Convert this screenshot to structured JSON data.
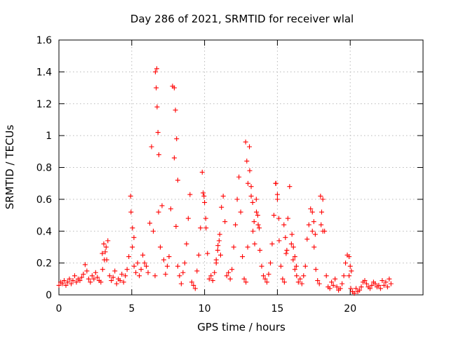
{
  "chart_data": {
    "type": "scatter",
    "title": "Day 286 of 2021, SRMTID for receiver wlal",
    "xlabel": "GPS time / hours",
    "ylabel": "SRMTID / TECUs",
    "xlim": [
      0,
      25
    ],
    "ylim": [
      0,
      1.6
    ],
    "grid": true,
    "x_ticks": [
      0,
      5,
      10,
      15,
      20
    ],
    "x_tick_labels": [
      "0",
      "5",
      "10",
      "15",
      "20"
    ],
    "y_ticks": [
      0,
      0.2,
      0.4,
      0.6,
      0.8,
      1,
      1.2,
      1.4,
      1.6
    ],
    "y_tick_labels": [
      "0",
      "0.2",
      "0.4",
      "0.6",
      "0.8",
      "1",
      "1.2",
      "1.4",
      "1.6"
    ],
    "marker": "+",
    "color": "#ff0000",
    "series": [
      {
        "name": "SRMTID",
        "x": [
          0.0,
          0.12,
          0.24,
          0.36,
          0.48,
          0.6,
          0.72,
          0.84,
          0.96,
          1.08,
          1.2,
          1.32,
          1.44,
          1.56,
          1.68,
          1.8,
          1.92,
          2.04,
          2.16,
          2.28,
          2.4,
          2.52,
          2.64,
          2.76,
          2.88,
          3.0,
          3.12,
          3.24,
          3.36,
          3.48,
          3.6,
          3.72,
          3.84,
          3.96,
          4.08,
          4.2,
          4.32,
          4.44,
          4.56,
          4.68,
          4.8,
          4.92,
          5.04,
          5.16,
          5.28,
          5.4,
          5.52,
          5.64,
          5.76,
          5.88,
          6.0,
          6.12,
          6.24,
          6.36,
          6.48,
          6.6,
          6.72,
          6.84,
          6.96,
          7.08,
          7.2,
          7.32,
          7.44,
          7.56,
          7.68,
          7.8,
          7.92,
          8.04,
          8.16,
          8.28,
          8.4,
          8.52,
          8.64,
          8.76,
          8.88,
          9.0,
          9.12,
          9.24,
          9.36,
          9.48,
          9.6,
          9.72,
          9.84,
          9.96,
          10.08,
          10.2,
          10.32,
          10.44,
          10.56,
          10.68,
          10.8,
          10.92,
          11.04,
          11.16,
          11.28,
          11.4,
          11.52,
          11.64,
          11.76,
          11.88,
          12.0,
          12.12,
          12.24,
          12.36,
          12.48,
          12.6,
          12.72,
          12.84,
          12.96,
          13.08,
          13.2,
          13.32,
          13.44,
          13.56,
          13.68,
          13.8,
          13.92,
          14.04,
          14.16,
          14.28,
          14.4,
          14.52,
          14.64,
          14.76,
          14.88,
          15.0,
          15.12,
          15.24,
          15.36,
          15.48,
          15.6,
          15.72,
          15.84,
          15.96,
          16.08,
          16.2,
          16.32,
          16.44,
          16.56,
          16.68,
          16.8,
          16.92,
          17.04,
          17.16,
          17.28,
          17.4,
          17.52,
          17.64,
          17.76,
          17.88,
          18.0,
          18.12,
          18.24,
          18.36,
          18.48,
          18.6,
          18.72,
          18.84,
          18.96,
          19.08,
          19.2,
          19.32,
          19.44,
          19.56,
          19.68,
          19.8,
          19.92,
          20.04,
          20.16,
          20.28,
          20.4,
          20.52,
          20.64,
          20.76,
          20.88,
          21.0,
          21.12,
          21.24,
          21.36,
          21.48,
          21.6,
          21.72,
          21.84,
          21.96,
          22.08,
          22.2,
          22.32,
          22.44,
          22.56,
          22.68,
          22.8,
          6.62,
          6.68,
          6.74,
          6.8,
          6.86,
          7.92,
          8.0,
          8.08,
          8.16,
          9.9,
          10.0,
          10.1,
          12.82,
          12.9,
          12.98,
          14.9,
          15.0,
          15.1,
          17.4,
          17.5,
          17.6,
          17.96,
          18.04,
          18.12,
          19.92,
          20.0,
          20.08,
          4.95,
          5.05,
          5.15,
          2.98,
          3.08,
          3.18,
          3.28,
          10.8,
          10.9,
          11.0,
          11.1,
          13.1,
          13.2,
          13.3,
          13.4,
          13.55,
          13.65,
          13.75,
          15.45,
          15.55,
          15.65,
          16.0,
          16.1,
          16.2,
          16.3
        ],
        "y": [
          0.06,
          0.08,
          0.07,
          0.09,
          0.06,
          0.08,
          0.1,
          0.07,
          0.09,
          0.12,
          0.08,
          0.1,
          0.09,
          0.11,
          0.13,
          0.19,
          0.15,
          0.1,
          0.08,
          0.12,
          0.1,
          0.14,
          0.11,
          0.09,
          0.08,
          0.16,
          0.22,
          0.3,
          0.34,
          0.12,
          0.09,
          0.11,
          0.15,
          0.07,
          0.1,
          0.09,
          0.13,
          0.08,
          0.12,
          0.16,
          0.24,
          0.62,
          0.3,
          0.18,
          0.14,
          0.2,
          0.12,
          0.16,
          0.25,
          0.2,
          0.18,
          0.14,
          0.45,
          0.93,
          0.4,
          0.12,
          1.42,
          0.52,
          0.3,
          0.56,
          0.22,
          0.13,
          0.18,
          0.24,
          0.54,
          1.31,
          0.86,
          0.43,
          0.18,
          0.12,
          0.07,
          0.14,
          0.2,
          0.32,
          0.48,
          0.63,
          0.08,
          0.06,
          0.04,
          0.15,
          0.25,
          0.42,
          0.77,
          0.62,
          0.48,
          0.26,
          0.1,
          0.12,
          0.09,
          0.14,
          0.2,
          0.31,
          0.38,
          0.55,
          0.62,
          0.46,
          0.12,
          0.14,
          0.1,
          0.16,
          0.3,
          0.44,
          0.6,
          0.74,
          0.52,
          0.24,
          0.1,
          0.08,
          0.3,
          0.93,
          0.62,
          0.4,
          0.32,
          0.52,
          0.44,
          0.28,
          0.18,
          0.12,
          0.1,
          0.08,
          0.13,
          0.2,
          0.32,
          0.5,
          0.7,
          0.6,
          0.34,
          0.18,
          0.1,
          0.08,
          0.26,
          0.48,
          0.68,
          0.32,
          0.22,
          0.16,
          0.12,
          0.08,
          0.1,
          0.07,
          0.12,
          0.18,
          0.35,
          0.44,
          0.54,
          0.4,
          0.3,
          0.16,
          0.09,
          0.07,
          0.44,
          0.6,
          0.4,
          0.12,
          0.05,
          0.04,
          0.08,
          0.06,
          0.1,
          0.05,
          0.03,
          0.04,
          0.07,
          0.12,
          0.2,
          0.25,
          0.12,
          0.04,
          0.02,
          0.01,
          0.04,
          0.02,
          0.03,
          0.05,
          0.08,
          0.09,
          0.07,
          0.05,
          0.04,
          0.06,
          0.08,
          0.07,
          0.05,
          0.06,
          0.04,
          0.09,
          0.06,
          0.08,
          0.05,
          0.1,
          0.07,
          1.4,
          1.3,
          1.18,
          1.02,
          0.88,
          1.3,
          1.16,
          0.98,
          0.72,
          0.64,
          0.58,
          0.42,
          0.96,
          0.84,
          0.7,
          0.7,
          0.63,
          0.48,
          0.52,
          0.46,
          0.38,
          0.62,
          0.52,
          0.4,
          0.24,
          0.18,
          0.15,
          0.52,
          0.42,
          0.36,
          0.26,
          0.32,
          0.27,
          0.22,
          0.22,
          0.28,
          0.34,
          0.25,
          0.78,
          0.68,
          0.58,
          0.46,
          0.6,
          0.5,
          0.42,
          0.44,
          0.36,
          0.28,
          0.38,
          0.3,
          0.24,
          0.18
        ]
      }
    ]
  }
}
